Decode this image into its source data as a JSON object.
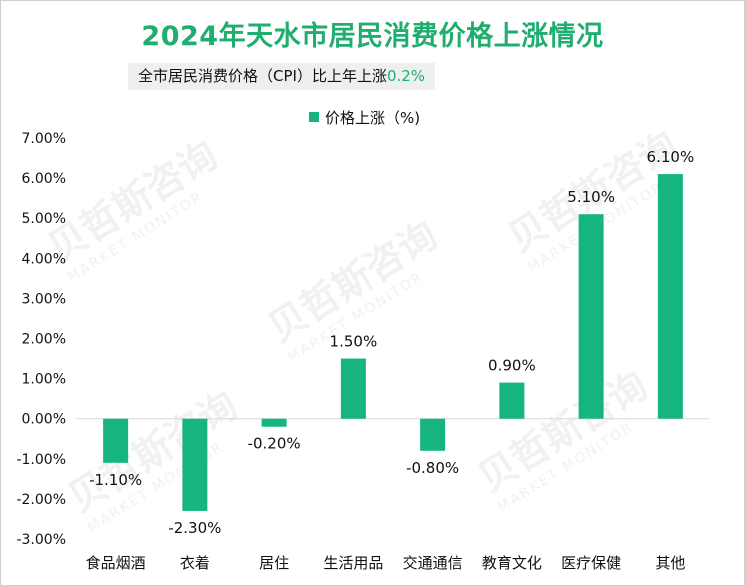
{
  "title": "2024年天水市居民消费价格上涨情况",
  "subtitle": {
    "text": "全市居民消费价格（CPI）比上年上涨",
    "value": "0.2%"
  },
  "legend": {
    "label": "价格上涨（%)"
  },
  "watermark": {
    "cn": "贝哲斯咨询",
    "en": "MARKET MONITOR"
  },
  "colors": {
    "bar": "#16b57f",
    "title": "#1fae6e",
    "axis": "#d9d9d9"
  },
  "chart_data": {
    "type": "bar",
    "categories": [
      "食品烟酒",
      "衣着",
      "居住",
      "生活用品",
      "交通通信",
      "教育文化",
      "医疗保健",
      "其他"
    ],
    "series": [
      {
        "name": "价格上涨（%)",
        "values": [
          -1.1,
          -2.3,
          -0.2,
          1.5,
          -0.8,
          0.9,
          5.1,
          6.1
        ]
      }
    ],
    "data_labels": [
      "-1.10%",
      "-2.30%",
      "-0.20%",
      "1.50%",
      "-0.80%",
      "0.90%",
      "5.10%",
      "6.10%"
    ],
    "y_ticks": [
      "7.00%",
      "6.00%",
      "5.00%",
      "4.00%",
      "3.00%",
      "2.00%",
      "1.00%",
      "0.00%",
      "-1.00%",
      "-2.00%",
      "-3.00%"
    ],
    "ylim": [
      -3,
      7
    ],
    "grid": false,
    "legend_position": "top"
  }
}
